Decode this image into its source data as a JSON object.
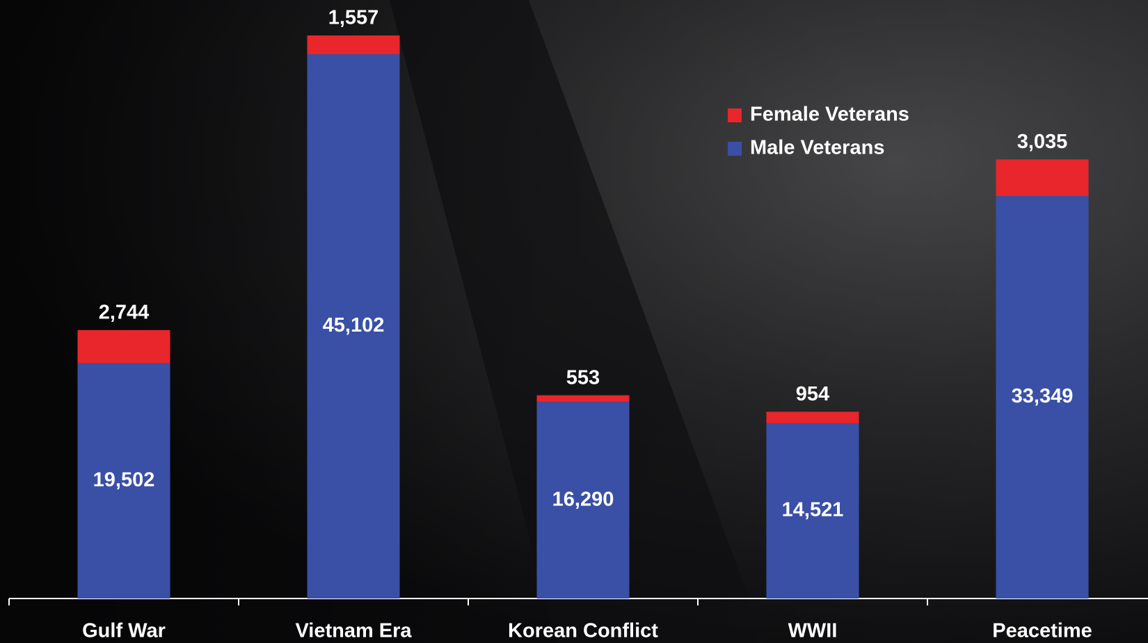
{
  "chart_data": {
    "type": "stacked_bar",
    "categories": [
      "Gulf War",
      "Vietnam Era",
      "Korean Conflict",
      "WWII",
      "Peacetime"
    ],
    "series": [
      {
        "name": "Male Veterans",
        "color": "#3a50a6",
        "values": [
          19502,
          45102,
          16290,
          14521,
          33349
        ],
        "value_labels": [
          "19,502",
          "45,102",
          "16,290",
          "14,521",
          "33,349"
        ]
      },
      {
        "name": "Female Veterans",
        "color": "#e8262b",
        "values": [
          2744,
          1557,
          553,
          954,
          3035
        ],
        "value_labels": [
          "2,744",
          "1,557",
          "553",
          "954",
          "3,035"
        ]
      }
    ]
  }
}
